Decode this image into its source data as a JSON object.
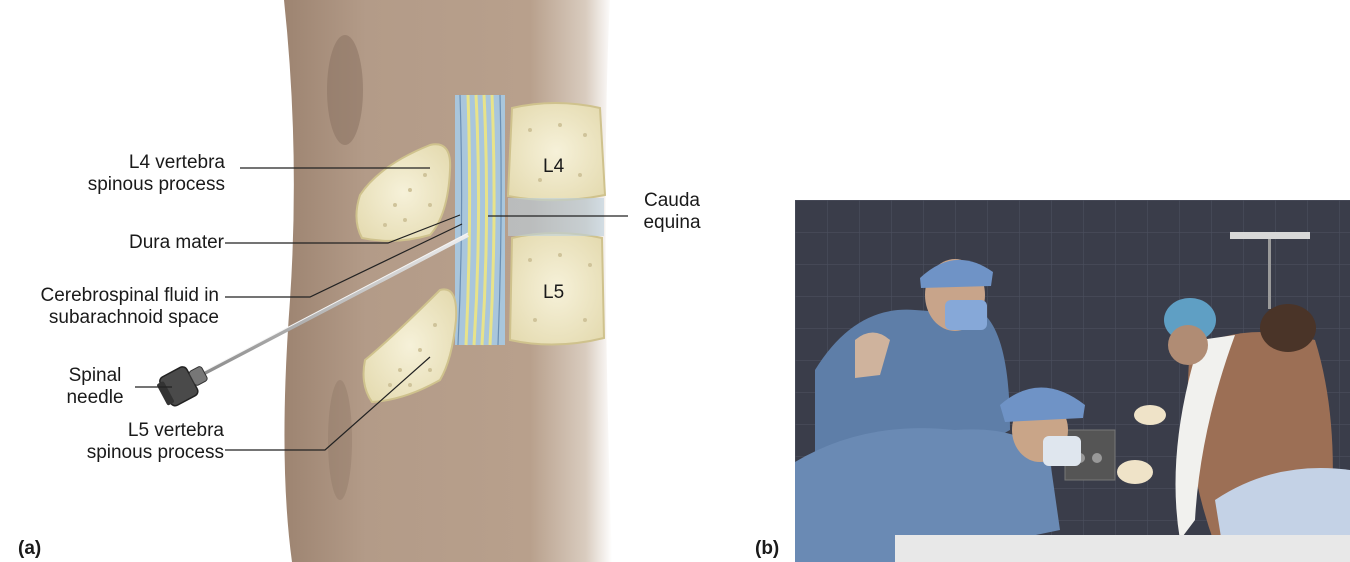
{
  "panel_a": {
    "tag": "(a)",
    "labels": {
      "l4_spinous_line1": "L4 vertebra",
      "l4_spinous_line2": "spinous process",
      "dura_mater": "Dura mater",
      "csf_line1": "Cerebrospinal fluid in",
      "csf_line2": "subarachnoid space",
      "needle_line1": "Spinal",
      "needle_line2": "needle",
      "l5_spinous_line1": "L5 vertebra",
      "l5_spinous_line2": "spinous process",
      "cauda_line1": "Cauda",
      "cauda_line2": "equina",
      "l4_body": "L4",
      "l5_body": "L5"
    }
  },
  "panel_b": {
    "tag": "(b)"
  },
  "colors": {
    "skin": "#b29a86",
    "bone": "#f1ebcd",
    "csf": "#a9c6dc",
    "nerve": "#ece79a",
    "photo_bg": "#3b3f4d",
    "scrubs": "#6f8fb8"
  }
}
